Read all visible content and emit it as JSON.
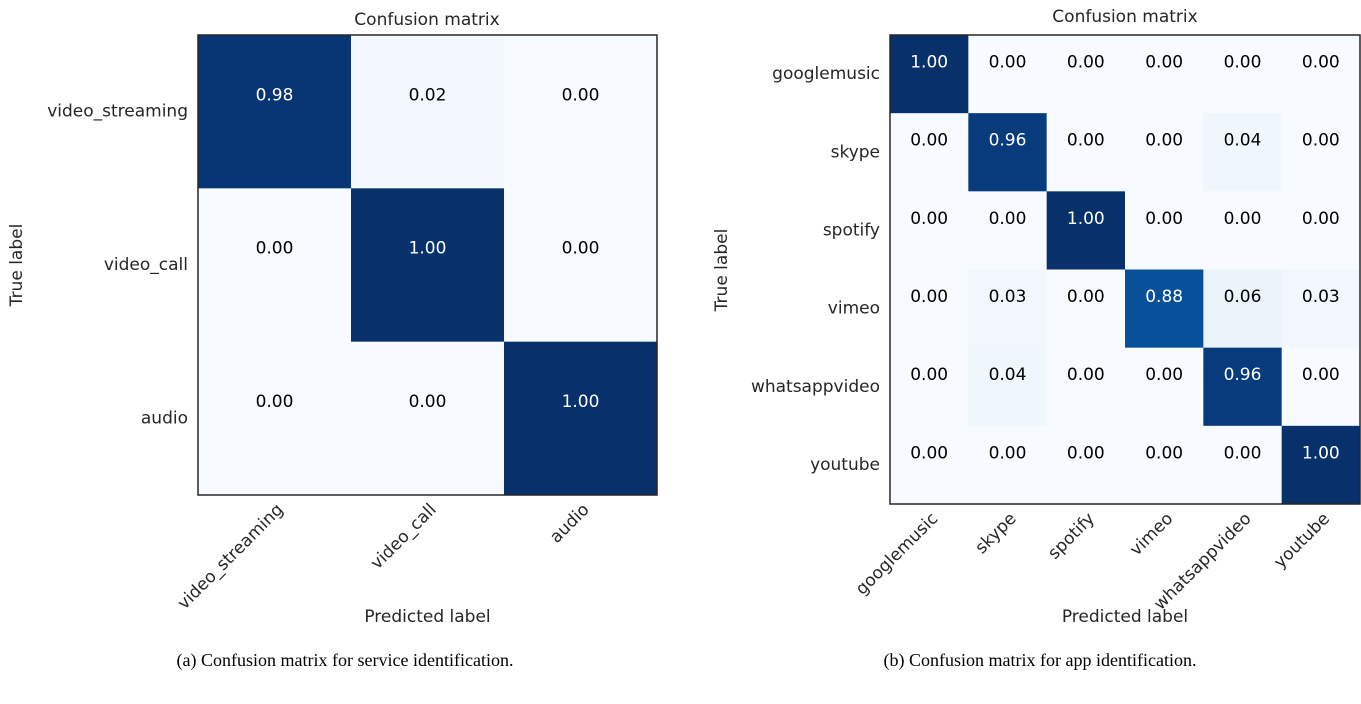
{
  "chart_data": [
    {
      "type": "heatmap",
      "title": "Confusion matrix",
      "xlabel": "Predicted label",
      "ylabel": "True label",
      "x_categories": [
        "video_streaming",
        "video_call",
        "audio"
      ],
      "y_categories": [
        "video_streaming",
        "video_call",
        "audio"
      ],
      "values": [
        [
          0.98,
          0.02,
          0
        ],
        [
          0,
          1,
          0
        ],
        [
          0,
          0,
          1
        ]
      ],
      "value_labels": [
        [
          "0.98",
          "0.02",
          "0.00"
        ],
        [
          "0.00",
          "1.00",
          "0.00"
        ],
        [
          "0.00",
          "0.00",
          "1.00"
        ]
      ],
      "colormap": "Blues",
      "caption": "(a) Confusion matrix for service identification."
    },
    {
      "type": "heatmap",
      "title": "Confusion matrix",
      "xlabel": "Predicted label",
      "ylabel": "True label",
      "x_categories": [
        "googlemusic",
        "skype",
        "spotify",
        "vimeo",
        "whatsappvideo",
        "youtube"
      ],
      "y_categories": [
        "googlemusic",
        "skype",
        "spotify",
        "vimeo",
        "whatsappvideo",
        "youtube"
      ],
      "values": [
        [
          1,
          0,
          0,
          0,
          0,
          0
        ],
        [
          0,
          0.96,
          0,
          0,
          0.04,
          0
        ],
        [
          0,
          0,
          1,
          0,
          0,
          0
        ],
        [
          0,
          0.03,
          0,
          0.88,
          0.06,
          0.03
        ],
        [
          0,
          0.04,
          0,
          0,
          0.96,
          0
        ],
        [
          0,
          0,
          0,
          0,
          0,
          1
        ]
      ],
      "value_labels": [
        [
          "1.00",
          "0.00",
          "0.00",
          "0.00",
          "0.00",
          "0.00"
        ],
        [
          "0.00",
          "0.96",
          "0.00",
          "0.00",
          "0.04",
          "0.00"
        ],
        [
          "0.00",
          "0.00",
          "1.00",
          "0.00",
          "0.00",
          "0.00"
        ],
        [
          "0.00",
          "0.03",
          "0.00",
          "0.88",
          "0.06",
          "0.03"
        ],
        [
          "0.00",
          "0.04",
          "0.00",
          "0.00",
          "0.96",
          "0.00"
        ],
        [
          "0.00",
          "0.00",
          "0.00",
          "0.00",
          "0.00",
          "1.00"
        ]
      ],
      "colormap": "Blues",
      "caption": "(b) Confusion matrix for app identification."
    }
  ]
}
